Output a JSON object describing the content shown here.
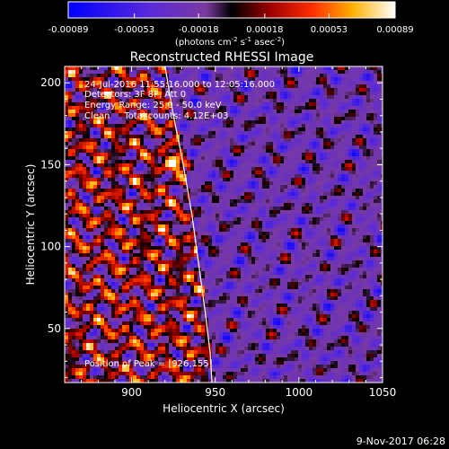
{
  "chart_data": {
    "type": "heatmap",
    "title": "Reconstructed RHESSI Image",
    "xlabel": "Heliocentric X (arcsec)",
    "ylabel": "Heliocentric Y (arcsec)",
    "xlim": [
      860,
      1050
    ],
    "ylim": [
      17,
      210
    ],
    "x_ticks": [
      900,
      950,
      1000,
      1050
    ],
    "y_ticks": [
      50,
      100,
      150,
      200
    ],
    "colorbar": {
      "min": -0.00089,
      "max": 0.00089,
      "tick_labels": [
        "-0.00089",
        "-0.00053",
        "-0.00018",
        "0.00018",
        "0.00053",
        "0.00089"
      ],
      "tick_values": [
        -0.00089,
        -0.00053,
        -0.00018,
        0.00018,
        0.00053,
        0.00089
      ],
      "unit_label": "(photons cm",
      "unit_sup1": "-2",
      "unit_mid": " s",
      "unit_sup2": "-1",
      "unit_end": " asec",
      "unit_sup3": "-2",
      "unit_close": ")"
    },
    "annotations": [
      "24-Jul-2016 11:55:16.000 to 12:05:16.000",
      "Detectors: 3F 8F, Att 0",
      "Energy Range: 25.0 - 50.0 keV",
      "Clean     Total counts: 4.12E+03"
    ],
    "peak_label": "Position of Peak = [926,155]",
    "peak": [
      926,
      155
    ],
    "limb": [
      [
        920,
        210
      ],
      [
        925,
        180
      ],
      [
        930,
        155
      ],
      [
        936,
        120
      ],
      [
        940,
        90
      ],
      [
        944,
        60
      ],
      [
        947,
        35
      ],
      [
        948,
        17
      ]
    ]
  },
  "footer": {
    "timestamp": "9-Nov-2017 06:28"
  }
}
